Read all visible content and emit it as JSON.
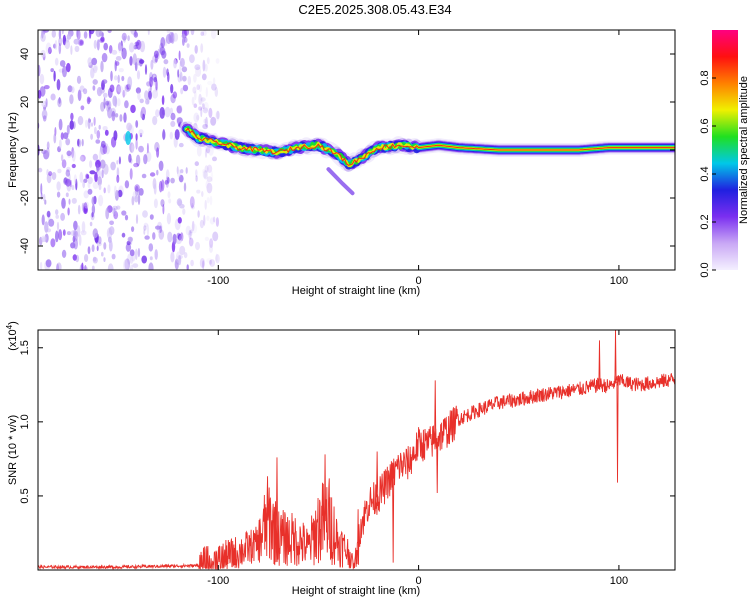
{
  "title": "C2E5.2025.308.05.43.E34",
  "colors": {
    "line": "#e8302a",
    "background": "#ffffff",
    "axis": "#000000"
  },
  "chart_data": [
    {
      "type": "heatmap",
      "xlabel": "Height of straight line (km)",
      "ylabel": "Frequency (Hz)",
      "xlim": [
        -190,
        128
      ],
      "ylim": [
        -50,
        50
      ],
      "x_ticks": [
        "-100",
        "0",
        "100"
      ],
      "x_tick_values": [
        -100,
        0,
        100
      ],
      "y_ticks": [
        "-40",
        "-20",
        "0",
        "20",
        "40"
      ],
      "y_tick_values": [
        -40,
        -20,
        0,
        20,
        40
      ],
      "colorbar": {
        "label": "Normalized spectral amplitude",
        "range": [
          0,
          1
        ],
        "ticks": [
          "0.0",
          "0.2",
          "0.4",
          "0.6",
          "0.8"
        ],
        "tick_values": [
          0,
          0.2,
          0.4,
          0.6,
          0.8
        ],
        "colors": [
          "#f4f0ff",
          "#c9a8f5",
          "#7b2ff0",
          "#2020e0",
          "#00c8e8",
          "#20e020",
          "#f0f000",
          "#ff8000",
          "#ff1010",
          "#ff0080"
        ]
      },
      "noise_region": {
        "x_range": [
          -190,
          -100
        ],
        "f_range": [
          -50,
          50
        ]
      },
      "ridge": {
        "x": [
          -116,
          -110,
          -100,
          -90,
          -80,
          -70,
          -60,
          -50,
          -40,
          -35,
          -30,
          -20,
          -10,
          0,
          10,
          20,
          40,
          60,
          80,
          95,
          110,
          128
        ],
        "f": [
          9,
          5,
          3,
          1,
          0,
          -1,
          1,
          2,
          -2,
          -6,
          -4,
          1,
          2,
          1,
          2,
          1,
          0,
          0,
          0,
          1,
          1,
          1
        ]
      }
    },
    {
      "type": "line",
      "xlabel": "Height of straight line (km)",
      "ylabel": "SNR (10 * v/v)",
      "y_multiplier": "(x10",
      "y_multiplier_exp": "4",
      "y_multiplier_close": ")",
      "xlim": [
        -190,
        128
      ],
      "ylim": [
        0,
        1.62
      ],
      "x_ticks": [
        "-100",
        "0",
        "100"
      ],
      "x_tick_values": [
        -100,
        0,
        100
      ],
      "y_ticks": [
        "0.5",
        "1.0",
        "1.5"
      ],
      "y_tick_values": [
        0.5,
        1.0,
        1.5
      ],
      "series": [
        {
          "name": "SNR",
          "x": [
            -190,
            -150,
            -110,
            -100,
            -90,
            -80,
            -75,
            -70,
            -60,
            -55,
            -50,
            -45,
            -40,
            -35,
            -32,
            -30,
            -25,
            -20,
            -15,
            -10,
            -5,
            0,
            5,
            10,
            15,
            20,
            30,
            40,
            50,
            60,
            70,
            80,
            90,
            95,
            100,
            105,
            110,
            120,
            128
          ],
          "y": [
            0.02,
            0.02,
            0.03,
            0.06,
            0.12,
            0.18,
            0.35,
            0.22,
            0.2,
            0.15,
            0.3,
            0.35,
            0.18,
            0.12,
            0.02,
            0.25,
            0.45,
            0.5,
            0.6,
            0.7,
            0.72,
            0.85,
            0.85,
            0.9,
            0.95,
            1.02,
            1.08,
            1.13,
            1.15,
            1.18,
            1.2,
            1.22,
            1.25,
            1.24,
            1.28,
            1.26,
            1.25,
            1.27,
            1.29
          ]
        }
      ],
      "spikes": [
        {
          "x": -71,
          "y": 0.76
        },
        {
          "x": -47,
          "y": 0.78
        },
        {
          "x": -31,
          "y": 0.04
        },
        {
          "x": -21,
          "y": 0.8
        },
        {
          "x": -13,
          "y": 0.05
        },
        {
          "x": 8,
          "y": 1.28
        },
        {
          "x": 9,
          "y": 0.52
        },
        {
          "x": 98,
          "y": 1.63
        },
        {
          "x": 99,
          "y": 0.59
        },
        {
          "x": 90,
          "y": 1.55
        }
      ]
    }
  ]
}
